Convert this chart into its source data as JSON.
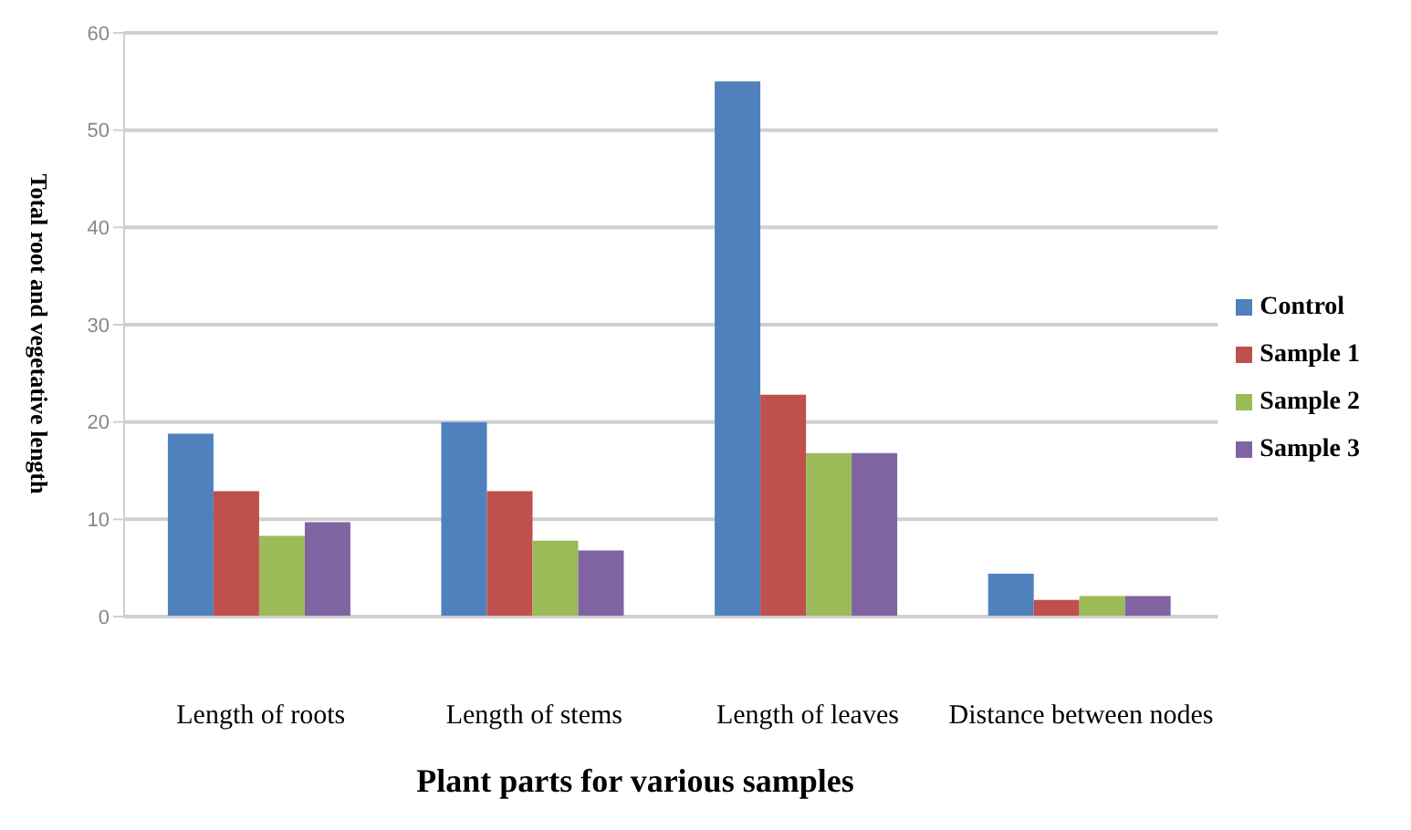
{
  "chart_data": {
    "type": "bar",
    "xlabel": "Plant parts for various samples",
    "ylabel": "Total root and vegetative length",
    "categories": [
      "Length of roots",
      "Length of stems",
      "Length of leaves",
      "Distance between nodes"
    ],
    "series": [
      {
        "name": "Control",
        "color": "#4f81bd",
        "values": [
          18.8,
          20,
          55,
          4.4
        ]
      },
      {
        "name": "Sample 1",
        "color": "#c0504d",
        "values": [
          12.9,
          12.9,
          22.8,
          1.7
        ]
      },
      {
        "name": "Sample 2",
        "color": "#9bbb59",
        "values": [
          8.3,
          7.8,
          16.8,
          2.1
        ]
      },
      {
        "name": "Sample 3",
        "color": "#8064a2",
        "values": [
          9.7,
          6.8,
          16.8,
          2.1
        ]
      }
    ],
    "ylim": [
      0,
      60
    ],
    "yticks": [
      0,
      10,
      20,
      30,
      40,
      50,
      60
    ],
    "grid": "y",
    "legend": "right"
  }
}
